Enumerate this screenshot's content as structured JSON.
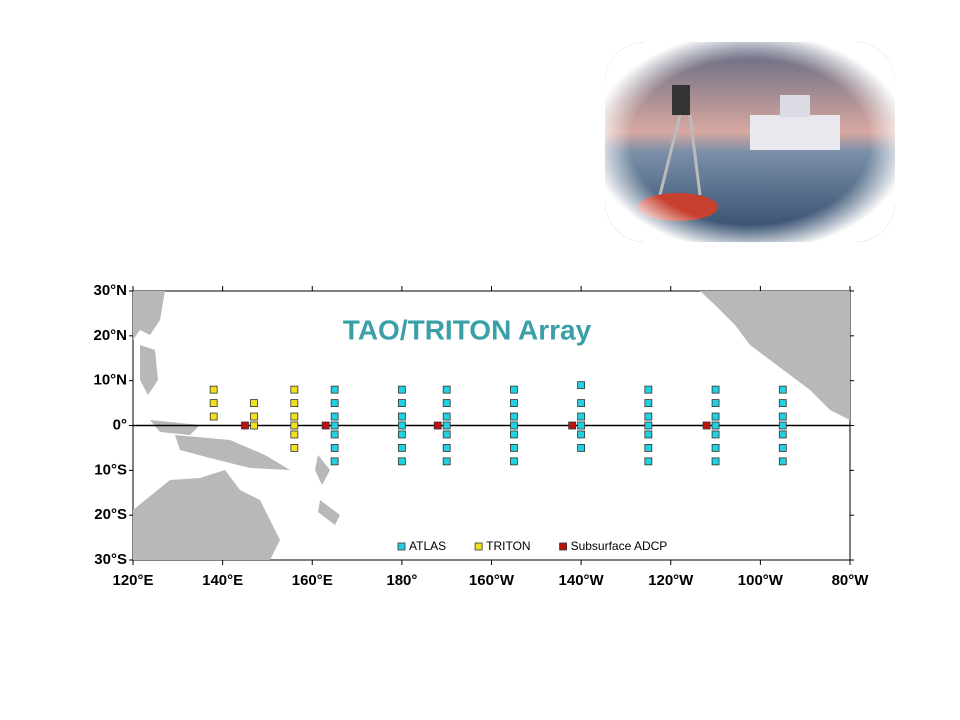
{
  "chart_data": {
    "type": "scatter",
    "title": "TAO/TRITON Array",
    "xlim": [
      120,
      280
    ],
    "ylim": [
      -30,
      30
    ],
    "xticks": [
      {
        "value": 120,
        "label": "120°E"
      },
      {
        "value": 140,
        "label": "140°E"
      },
      {
        "value": 160,
        "label": "160°E"
      },
      {
        "value": 180,
        "label": "180°"
      },
      {
        "value": 200,
        "label": "160°W"
      },
      {
        "value": 220,
        "label": "140°W"
      },
      {
        "value": 240,
        "label": "120°W"
      },
      {
        "value": 260,
        "label": "100°W"
      },
      {
        "value": 280,
        "label": "80°W"
      }
    ],
    "yticks": [
      {
        "value": -30,
        "label": "30°S"
      },
      {
        "value": -20,
        "label": "20°S"
      },
      {
        "value": -10,
        "label": "10°S"
      },
      {
        "value": 0,
        "label": "0°"
      },
      {
        "value": 10,
        "label": "10°N"
      },
      {
        "value": 20,
        "label": "20°N"
      },
      {
        "value": 30,
        "label": "30°N"
      }
    ],
    "series": [
      {
        "name": "ATLAS",
        "color": "#22d0e0",
        "x": [
          165,
          165,
          165,
          165,
          165,
          165,
          165,
          180,
          180,
          180,
          180,
          180,
          180,
          180,
          190,
          190,
          190,
          190,
          190,
          190,
          190,
          205,
          205,
          205,
          205,
          205,
          205,
          205,
          220,
          220,
          220,
          220,
          220,
          220,
          235,
          235,
          235,
          235,
          235,
          235,
          235,
          250,
          250,
          250,
          250,
          250,
          250,
          250,
          265,
          265,
          265,
          265,
          265,
          265,
          265
        ],
        "values": [
          8,
          5,
          2,
          0,
          -2,
          -5,
          -8,
          8,
          5,
          2,
          0,
          -2,
          -5,
          -8,
          8,
          5,
          2,
          0,
          -2,
          -5,
          -8,
          8,
          5,
          2,
          0,
          -2,
          -5,
          -8,
          9,
          5,
          2,
          0,
          -2,
          -5,
          8,
          5,
          2,
          0,
          -2,
          -5,
          -8,
          8,
          5,
          2,
          0,
          -2,
          -5,
          -8,
          8,
          5,
          2,
          0,
          -2,
          -5,
          -8
        ]
      },
      {
        "name": "TRITON",
        "color": "#f0e020",
        "x": [
          138,
          138,
          138,
          147,
          147,
          147,
          156,
          156,
          156,
          156,
          156,
          156
        ],
        "values": [
          8,
          5,
          2,
          5,
          2,
          0,
          8,
          5,
          2,
          0,
          -2,
          -5
        ]
      },
      {
        "name": "Subsurface ADCP",
        "color": "#c01010",
        "x": [
          145,
          163,
          188,
          218,
          248
        ],
        "values": [
          0,
          0,
          0,
          0,
          0
        ]
      }
    ]
  }
}
